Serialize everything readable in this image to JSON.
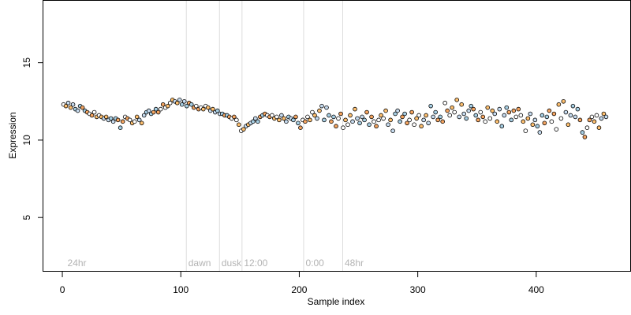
{
  "chart_data": {
    "type": "scatter",
    "xlabel": "Sample index",
    "ylabel": "Expression",
    "xlim": [
      -16,
      480
    ],
    "ylim": [
      1.5,
      19
    ],
    "x_ticks": [
      0,
      100,
      200,
      300,
      400
    ],
    "y_ticks": [
      5,
      10,
      15
    ],
    "grid": false,
    "annotations": [
      {
        "label": "24hr",
        "x": 3
      },
      {
        "label": "dawn",
        "x": 105
      },
      {
        "label": "dusk",
        "x": 133
      },
      {
        "label": "12:00",
        "x": 152
      },
      {
        "label": "0:00",
        "x": 204
      },
      {
        "label": "48hr",
        "x": 237
      }
    ],
    "marker_colors": {
      "outline": "#000000",
      "fills": [
        "#ffffff",
        "#a6cee3",
        "#fdbf6f",
        "#f4a460",
        "#c6dbef"
      ]
    },
    "series": [
      {
        "points": [
          [
            1,
            12.3
          ],
          [
            3,
            12.2
          ],
          [
            5,
            12.4
          ],
          [
            7,
            12.1
          ],
          [
            9,
            12.3
          ],
          [
            11,
            12.0
          ],
          [
            13,
            11.9
          ],
          [
            15,
            12.2
          ],
          [
            17,
            12.1
          ],
          [
            19,
            11.9
          ],
          [
            21,
            11.8
          ],
          [
            23,
            11.7
          ],
          [
            25,
            11.6
          ],
          [
            27,
            11.8
          ],
          [
            29,
            11.5
          ],
          [
            31,
            11.6
          ],
          [
            33,
            11.5
          ],
          [
            35,
            11.4
          ],
          [
            37,
            11.5
          ],
          [
            39,
            11.3
          ],
          [
            41,
            11.4
          ],
          [
            43,
            11.2
          ],
          [
            45,
            11.4
          ],
          [
            47,
            11.3
          ],
          [
            49,
            10.8
          ],
          [
            51,
            11.2
          ],
          [
            53,
            11.5
          ],
          [
            55,
            11.4
          ],
          [
            57,
            11.3
          ],
          [
            59,
            11.1
          ],
          [
            61,
            11.2
          ],
          [
            63,
            11.5
          ],
          [
            65,
            11.3
          ],
          [
            67,
            11.1
          ],
          [
            69,
            11.6
          ],
          [
            71,
            11.8
          ],
          [
            73,
            11.9
          ],
          [
            75,
            11.7
          ],
          [
            77,
            11.8
          ],
          [
            79,
            12.0
          ],
          [
            81,
            11.8
          ],
          [
            83,
            12.0
          ],
          [
            85,
            12.3
          ],
          [
            87,
            12.1
          ],
          [
            89,
            12.2
          ],
          [
            91,
            12.4
          ],
          [
            93,
            12.6
          ],
          [
            95,
            12.5
          ],
          [
            97,
            12.4
          ],
          [
            99,
            12.6
          ],
          [
            101,
            12.3
          ],
          [
            103,
            12.5
          ],
          [
            105,
            12.2
          ],
          [
            107,
            12.4
          ],
          [
            109,
            12.3
          ],
          [
            111,
            12.1
          ],
          [
            113,
            12.2
          ],
          [
            115,
            12.0
          ],
          [
            117,
            12.1
          ],
          [
            119,
            12.0
          ],
          [
            121,
            12.2
          ],
          [
            123,
            12.1
          ],
          [
            125,
            11.9
          ],
          [
            127,
            12.0
          ],
          [
            129,
            11.8
          ],
          [
            131,
            11.9
          ],
          [
            133,
            11.7
          ],
          [
            135,
            11.7
          ],
          [
            137,
            11.6
          ],
          [
            139,
            11.6
          ],
          [
            141,
            11.5
          ],
          [
            143,
            11.4
          ],
          [
            145,
            11.5
          ],
          [
            147,
            11.3
          ],
          [
            149,
            11.0
          ],
          [
            151,
            10.6
          ],
          [
            153,
            10.7
          ],
          [
            155,
            10.9
          ],
          [
            157,
            11.0
          ],
          [
            159,
            11.1
          ],
          [
            161,
            11.2
          ],
          [
            163,
            11.4
          ],
          [
            165,
            11.2
          ],
          [
            167,
            11.5
          ],
          [
            169,
            11.6
          ],
          [
            171,
            11.7
          ],
          [
            173,
            11.6
          ],
          [
            175,
            11.5
          ],
          [
            177,
            11.6
          ],
          [
            179,
            11.4
          ],
          [
            181,
            11.5
          ],
          [
            183,
            11.3
          ],
          [
            185,
            11.6
          ],
          [
            187,
            11.4
          ],
          [
            189,
            11.2
          ],
          [
            191,
            11.5
          ],
          [
            193,
            11.4
          ],
          [
            195,
            11.3
          ],
          [
            197,
            11.5
          ],
          [
            199,
            11.1
          ],
          [
            201,
            10.8
          ],
          [
            203,
            11.3
          ],
          [
            205,
            11.2
          ],
          [
            207,
            11.5
          ],
          [
            209,
            11.3
          ],
          [
            211,
            11.8
          ],
          [
            213,
            11.6
          ],
          [
            215,
            11.4
          ],
          [
            217,
            11.9
          ],
          [
            219,
            12.2
          ],
          [
            221,
            11.3
          ],
          [
            223,
            12.1
          ],
          [
            225,
            11.6
          ],
          [
            227,
            11.2
          ],
          [
            229,
            11.5
          ],
          [
            231,
            10.9
          ],
          [
            233,
            11.4
          ],
          [
            235,
            11.7
          ],
          [
            237,
            10.8
          ],
          [
            239,
            11.3
          ],
          [
            241,
            11.0
          ],
          [
            243,
            11.6
          ],
          [
            245,
            11.2
          ],
          [
            247,
            12.0
          ],
          [
            249,
            11.4
          ],
          [
            251,
            11.1
          ],
          [
            253,
            11.5
          ],
          [
            255,
            11.3
          ],
          [
            257,
            11.8
          ],
          [
            259,
            11.0
          ],
          [
            261,
            11.5
          ],
          [
            263,
            11.2
          ],
          [
            265,
            10.9
          ],
          [
            267,
            11.3
          ],
          [
            269,
            11.6
          ],
          [
            271,
            11.4
          ],
          [
            273,
            11.9
          ],
          [
            275,
            11.0
          ],
          [
            277,
            11.3
          ],
          [
            279,
            10.6
          ],
          [
            281,
            11.7
          ],
          [
            283,
            11.9
          ],
          [
            285,
            11.2
          ],
          [
            287,
            11.5
          ],
          [
            289,
            11.7
          ],
          [
            291,
            11.1
          ],
          [
            293,
            11.3
          ],
          [
            295,
            11.8
          ],
          [
            297,
            11.0
          ],
          [
            299,
            11.4
          ],
          [
            301,
            11.6
          ],
          [
            303,
            10.9
          ],
          [
            305,
            11.3
          ],
          [
            307,
            11.6
          ],
          [
            309,
            11.1
          ],
          [
            311,
            12.2
          ],
          [
            313,
            11.5
          ],
          [
            315,
            11.8
          ],
          [
            317,
            11.3
          ],
          [
            319,
            11.5
          ],
          [
            321,
            11.2
          ],
          [
            323,
            12.4
          ],
          [
            325,
            11.9
          ],
          [
            327,
            11.6
          ],
          [
            329,
            12.1
          ],
          [
            331,
            11.8
          ],
          [
            333,
            12.6
          ],
          [
            335,
            11.5
          ],
          [
            337,
            12.3
          ],
          [
            339,
            11.7
          ],
          [
            341,
            11.4
          ],
          [
            343,
            11.9
          ],
          [
            345,
            12.2
          ],
          [
            347,
            12.0
          ],
          [
            349,
            11.6
          ],
          [
            351,
            11.3
          ],
          [
            353,
            11.8
          ],
          [
            355,
            11.5
          ],
          [
            357,
            11.2
          ],
          [
            359,
            12.1
          ],
          [
            361,
            11.4
          ],
          [
            363,
            11.9
          ],
          [
            365,
            11.7
          ],
          [
            367,
            11.2
          ],
          [
            369,
            12.0
          ],
          [
            371,
            10.9
          ],
          [
            373,
            11.6
          ],
          [
            375,
            12.1
          ],
          [
            377,
            11.8
          ],
          [
            379,
            11.3
          ],
          [
            381,
            11.9
          ],
          [
            383,
            11.5
          ],
          [
            385,
            12.0
          ],
          [
            387,
            11.6
          ],
          [
            389,
            11.2
          ],
          [
            391,
            10.6
          ],
          [
            393,
            11.4
          ],
          [
            395,
            11.7
          ],
          [
            397,
            11.0
          ],
          [
            399,
            11.3
          ],
          [
            401,
            10.9
          ],
          [
            403,
            10.5
          ],
          [
            405,
            11.6
          ],
          [
            407,
            11.1
          ],
          [
            409,
            11.5
          ],
          [
            411,
            11.9
          ],
          [
            413,
            11.2
          ],
          [
            415,
            11.7
          ],
          [
            417,
            10.7
          ],
          [
            419,
            12.3
          ],
          [
            421,
            11.4
          ],
          [
            423,
            12.5
          ],
          [
            425,
            11.8
          ],
          [
            427,
            11.0
          ],
          [
            429,
            11.6
          ],
          [
            431,
            12.2
          ],
          [
            433,
            11.5
          ],
          [
            435,
            12.0
          ],
          [
            437,
            11.3
          ],
          [
            439,
            10.5
          ],
          [
            441,
            10.2
          ],
          [
            443,
            10.8
          ],
          [
            445,
            11.3
          ],
          [
            447,
            11.5
          ],
          [
            449,
            11.2
          ],
          [
            451,
            11.6
          ],
          [
            453,
            10.8
          ],
          [
            455,
            11.4
          ],
          [
            457,
            11.7
          ],
          [
            459,
            11.5
          ]
        ]
      }
    ]
  }
}
